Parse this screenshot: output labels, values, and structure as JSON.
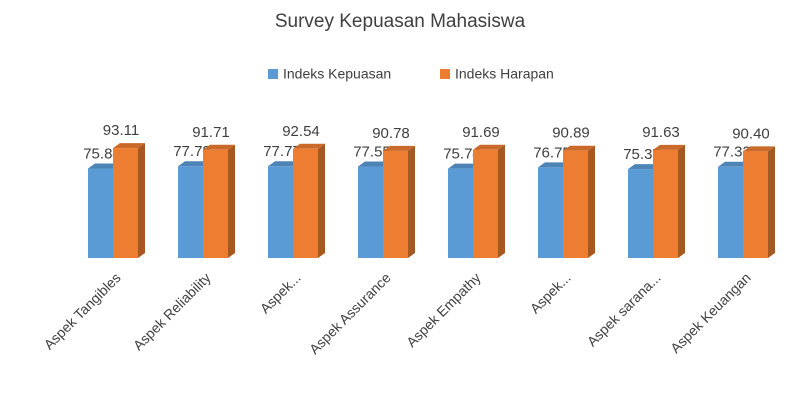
{
  "chart_data": {
    "type": "bar3d",
    "title": "Survey Kepuasan Mahasiswa",
    "categories": [
      "Aspek Tangibles",
      "Aspek Reliability",
      "Aspek...",
      "Aspek Assurance",
      "Aspek Empathy",
      "Aspek...",
      "Aspek sarana...",
      "Aspek Keuangan"
    ],
    "series": [
      {
        "name": "Indeks Kepuasan",
        "color": "#5b9bd5",
        "values": [
          75.84,
          77.78,
          77.77,
          77.55,
          75.74,
          76.75,
          75.37,
          77.32
        ],
        "value_labels": [
          "75.84",
          "77.78",
          "77.77",
          "77.55",
          "75.74",
          "76.75",
          "75.37",
          "77.32"
        ]
      },
      {
        "name": "Indeks Harapan",
        "color": "#ed7d31",
        "values": [
          93.11,
          91.71,
          92.54,
          90.78,
          91.69,
          90.89,
          91.63,
          90.4
        ],
        "value_labels": [
          "93.11",
          "91.71",
          "92.54",
          "90.78",
          "91.69",
          "90.89",
          "91.63",
          "90.40"
        ]
      }
    ],
    "legend": "top"
  }
}
